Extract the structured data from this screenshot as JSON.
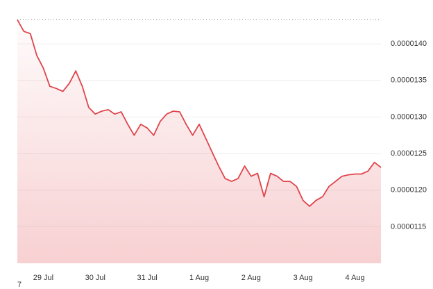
{
  "chart_data": {
    "type": "line",
    "logo_text": "7",
    "x": [
      0,
      1,
      2,
      3,
      4,
      5,
      6,
      7,
      8,
      9,
      10,
      11,
      12,
      13,
      14,
      15,
      16,
      17,
      18,
      19,
      20,
      21,
      22,
      23,
      24,
      25,
      26,
      27,
      28,
      29,
      30,
      31,
      32,
      33,
      34,
      35,
      36,
      37,
      38,
      39,
      40,
      41,
      42,
      43,
      44,
      45,
      46,
      47,
      48,
      49,
      50,
      51,
      52,
      53,
      54,
      55,
      56
    ],
    "series": [
      {
        "color": "#e0444b",
        "values": [
          1.433e-05,
          1.417e-05,
          1.414e-05,
          1.384e-05,
          1.367e-05,
          1.342e-05,
          1.339e-05,
          1.335e-05,
          1.346e-05,
          1.363e-05,
          1.342e-05,
          1.313e-05,
          1.304e-05,
          1.308e-05,
          1.31e-05,
          1.304e-05,
          1.307e-05,
          1.29e-05,
          1.275e-05,
          1.29e-05,
          1.285e-05,
          1.275e-05,
          1.294e-05,
          1.304e-05,
          1.308e-05,
          1.307e-05,
          1.29e-05,
          1.275e-05,
          1.29e-05,
          1.271e-05,
          1.252e-05,
          1.233e-05,
          1.216e-05,
          1.212e-05,
          1.216e-05,
          1.233e-05,
          1.219e-05,
          1.223e-05,
          1.191e-05,
          1.223e-05,
          1.219e-05,
          1.212e-05,
          1.212e-05,
          1.205e-05,
          1.186e-05,
          1.178e-05,
          1.186e-05,
          1.191e-05,
          1.205e-05,
          1.212e-05,
          1.219e-05,
          1.221e-05,
          1.222e-05,
          1.222e-05,
          1.226e-05,
          1.238e-05,
          1.231e-05
        ]
      }
    ],
    "xlim": [
      0,
      56
    ],
    "xticks": [
      {
        "value": 4,
        "label": "29 Jul"
      },
      {
        "value": 12,
        "label": "30 Jul"
      },
      {
        "value": 20,
        "label": "31 Jul"
      },
      {
        "value": 28,
        "label": "1 Aug"
      },
      {
        "value": 36,
        "label": "2 Aug"
      },
      {
        "value": 44,
        "label": "3 Aug"
      },
      {
        "value": 52,
        "label": "4 Aug"
      }
    ],
    "ylim": [
      1.1e-05,
      1.44e-05
    ],
    "yticks": [
      {
        "value": 1.15e-05,
        "label": "0.0000115"
      },
      {
        "value": 1.2e-05,
        "label": "0.0000120"
      },
      {
        "value": 1.25e-05,
        "label": "0.0000125"
      },
      {
        "value": 1.3e-05,
        "label": "0.0000130"
      },
      {
        "value": 1.35e-05,
        "label": "0.0000135"
      },
      {
        "value": 1.4e-05,
        "label": "0.0000140"
      }
    ],
    "grid": true
  }
}
